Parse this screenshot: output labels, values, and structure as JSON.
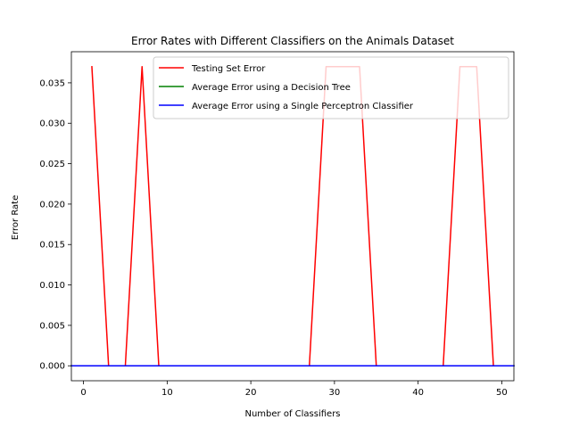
{
  "chart_data": {
    "type": "line",
    "title": "Error Rates with Different Classifiers on the Animals Dataset",
    "xlabel": "Number of Classifiers",
    "ylabel": "Error Rate",
    "xlim": [
      -1.45,
      51.45
    ],
    "ylim": [
      -0.00185,
      0.03885
    ],
    "xticks": [
      0,
      10,
      20,
      30,
      40,
      50
    ],
    "xtick_labels": [
      "0",
      "10",
      "20",
      "30",
      "40",
      "50"
    ],
    "yticks": [
      0.0,
      0.005,
      0.01,
      0.015,
      0.02,
      0.025,
      0.03,
      0.035
    ],
    "ytick_labels": [
      "0.000",
      "0.005",
      "0.010",
      "0.015",
      "0.020",
      "0.025",
      "0.030",
      "0.035"
    ],
    "grid": false,
    "legend_position": "top-right",
    "series": [
      {
        "name": "Testing Set Error",
        "color": "#ff0000",
        "x": [
          1,
          3,
          5,
          7,
          9,
          11,
          13,
          15,
          17,
          19,
          21,
          23,
          25,
          27,
          29,
          31,
          33,
          35,
          37,
          39,
          41,
          43,
          45,
          47,
          49
        ],
        "y": [
          0.037,
          0.0,
          0.0,
          0.037,
          0.0,
          0.0,
          0.0,
          0.0,
          0.0,
          0.0,
          0.0,
          0.0,
          0.0,
          0.0,
          0.037,
          0.037,
          0.037,
          0.0,
          0.0,
          0.0,
          0.0,
          0.0,
          0.037,
          0.037,
          0.0
        ]
      },
      {
        "name": "Average Error using a Decision Tree",
        "color": "#008000",
        "x": [
          -1.45,
          51.45
        ],
        "y": [
          0.0,
          0.0
        ]
      },
      {
        "name": "Average Error using a Single Perceptron Classifier",
        "color": "#0000ff",
        "x": [
          -1.45,
          51.45
        ],
        "y": [
          0.0,
          0.0
        ]
      }
    ]
  }
}
